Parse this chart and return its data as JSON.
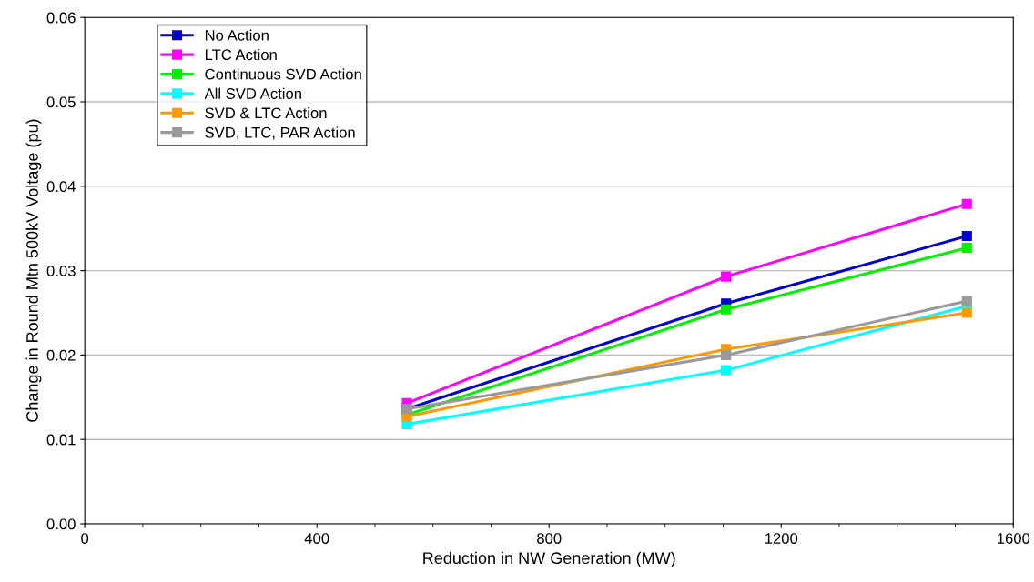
{
  "chart_data": {
    "type": "line",
    "xlabel": "Reduction in NW Generation (MW)",
    "ylabel": "Change in Round Mtn 500kV Voltage (pu)",
    "xlim": [
      0,
      1600
    ],
    "xticks": [
      0,
      400,
      800,
      1200,
      1600
    ],
    "ylim": [
      0,
      0.06
    ],
    "yticks": [
      {
        "value": 0,
        "label": "0.00"
      },
      {
        "value": 0.01,
        "label": "0.01"
      },
      {
        "value": 0.02,
        "label": "0.02"
      },
      {
        "value": 0.03,
        "label": "0.03"
      },
      {
        "value": 0.04,
        "label": "0.04"
      },
      {
        "value": 0.05,
        "label": "0.05"
      },
      {
        "value": 0.06,
        "label": "0.06"
      }
    ],
    "x": [
      555,
      1105,
      1520
    ],
    "grid": "y",
    "legend": "top left",
    "marker": "square",
    "line_style": "solid",
    "series": [
      {
        "name": "No Action",
        "color": "#0000cc",
        "values": [
          0.0136,
          0.0261,
          0.0341
        ]
      },
      {
        "name": "LTC Action",
        "color": "#ff00ff",
        "values": [
          0.0143,
          0.0293,
          0.0379
        ]
      },
      {
        "name": "Continuous SVD Action",
        "color": "#00ee00",
        "values": [
          0.0129,
          0.0254,
          0.0327
        ]
      },
      {
        "name": "All SVD Action",
        "color": "#00ffff",
        "values": [
          0.0118,
          0.0182,
          0.0258
        ]
      },
      {
        "name": "SVD & LTC Action",
        "color": "#ff9900",
        "values": [
          0.0127,
          0.0207,
          0.025
        ]
      },
      {
        "name": "SVD, LTC, PAR Action",
        "color": "#999999",
        "values": [
          0.0136,
          0.02,
          0.0264
        ]
      }
    ]
  }
}
